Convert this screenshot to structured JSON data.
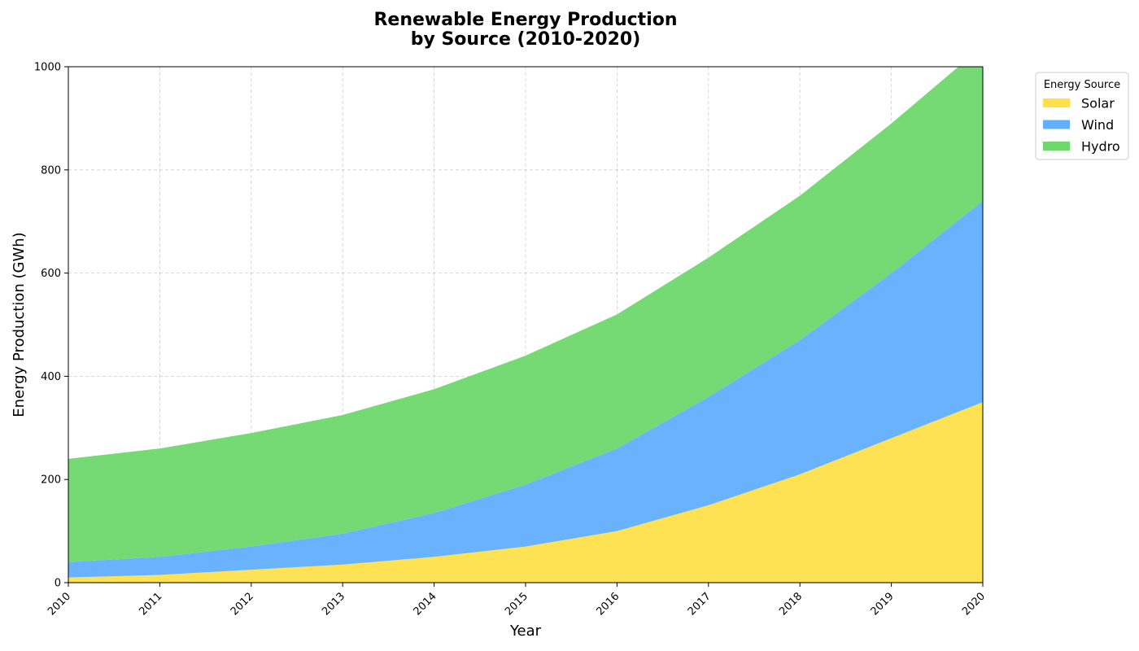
{
  "chart_data": {
    "type": "area",
    "stacked": true,
    "title_lines": [
      "Renewable Energy Production",
      "by Source (2010-2020)"
    ],
    "xlabel": "Year",
    "ylabel": "Energy Production (GWh)",
    "x": [
      "2010",
      "2011",
      "2012",
      "2013",
      "2014",
      "2015",
      "2016",
      "2017",
      "2018",
      "2019",
      "2020"
    ],
    "xlim": [
      2010,
      2020
    ],
    "ylim": [
      0,
      1000
    ],
    "yticks": [
      "0",
      "200",
      "400",
      "600",
      "800",
      "1000"
    ],
    "grid": true,
    "legend": {
      "title": "Energy Source",
      "placement": "outside-top-right"
    },
    "series": [
      {
        "name": "Solar",
        "color": "#FFE04B",
        "values": [
          10,
          15,
          25,
          35,
          50,
          70,
          100,
          150,
          210,
          280,
          350
        ]
      },
      {
        "name": "Wind",
        "color": "#61AFFE",
        "values": [
          30,
          35,
          45,
          60,
          85,
          120,
          160,
          210,
          260,
          320,
          390
        ]
      },
      {
        "name": "Hydro",
        "color": "#6ED86B",
        "values": [
          200,
          210,
          220,
          230,
          240,
          250,
          260,
          270,
          280,
          290,
          300
        ]
      }
    ]
  }
}
